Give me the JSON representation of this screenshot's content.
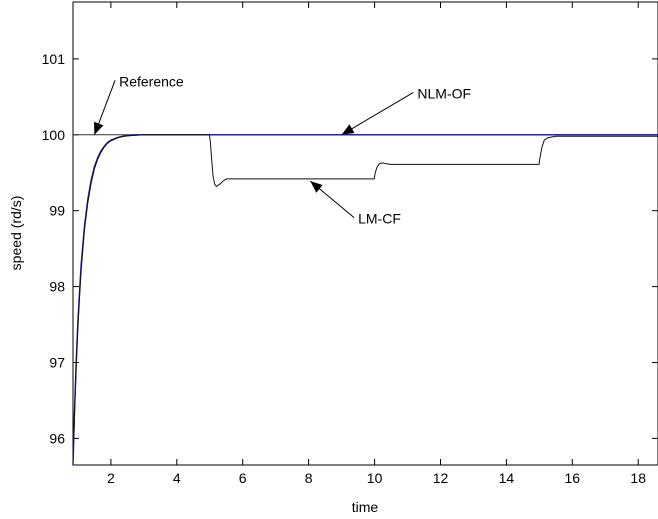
{
  "chart_data": {
    "type": "line",
    "title": "",
    "xlabel": "time",
    "ylabel": "speed (rd/s)",
    "xlim": [
      0.85,
      18.6
    ],
    "ylim": [
      95.65,
      101.75
    ],
    "xticks": [
      2,
      4,
      6,
      8,
      10,
      12,
      14,
      16,
      18
    ],
    "yticks": [
      96,
      97,
      98,
      99,
      100,
      101
    ],
    "grid": false,
    "legend": "none",
    "series": [
      {
        "name": "Reference",
        "color": "#333333",
        "x": [
          0.85,
          18.6
        ],
        "y": [
          100.0,
          100.0
        ]
      },
      {
        "name": "NLM-OF",
        "color": "#1a1aa8",
        "x": [
          0.85,
          0.9,
          0.95,
          1.0,
          1.05,
          1.1,
          1.2,
          1.3,
          1.4,
          1.5,
          1.6,
          1.7,
          1.8,
          1.9,
          2.0,
          2.2,
          2.4,
          2.6,
          2.8,
          3.0,
          3.5,
          4.0,
          6.0,
          8.0,
          10.0,
          12.0,
          14.0,
          16.0,
          18.6
        ],
        "y": [
          95.65,
          96.4,
          97.05,
          97.55,
          97.95,
          98.3,
          98.8,
          99.15,
          99.4,
          99.58,
          99.7,
          99.79,
          99.85,
          99.9,
          99.93,
          99.965,
          99.985,
          99.995,
          100.0,
          100.0,
          100.0,
          100.0,
          100.0,
          100.0,
          100.0,
          100.0,
          100.0,
          100.0,
          100.0
        ]
      },
      {
        "name": "LM-CF",
        "color": "#111111",
        "x": [
          0.85,
          0.9,
          0.95,
          1.0,
          1.05,
          1.1,
          1.2,
          1.3,
          1.4,
          1.5,
          1.6,
          1.7,
          1.8,
          1.9,
          2.0,
          2.2,
          2.4,
          2.6,
          2.8,
          3.0,
          3.5,
          4.0,
          4.5,
          4.99,
          5.02,
          5.06,
          5.1,
          5.15,
          5.2,
          5.3,
          5.4,
          5.5,
          6.0,
          7.0,
          8.0,
          9.0,
          9.99,
          10.02,
          10.08,
          10.15,
          10.25,
          10.35,
          10.5,
          11.0,
          12.0,
          13.0,
          14.0,
          14.99,
          15.02,
          15.08,
          15.15,
          15.25,
          15.35,
          15.5,
          16.0,
          17.0,
          18.0,
          18.6
        ],
        "y": [
          95.7,
          96.35,
          96.95,
          97.45,
          97.87,
          98.22,
          98.75,
          99.1,
          99.36,
          99.55,
          99.68,
          99.77,
          99.84,
          99.89,
          99.92,
          99.96,
          99.98,
          99.99,
          99.995,
          100.0,
          100.0,
          100.0,
          100.0,
          100.0,
          99.9,
          99.65,
          99.45,
          99.35,
          99.32,
          99.35,
          99.39,
          99.42,
          99.42,
          99.42,
          99.42,
          99.42,
          99.42,
          99.5,
          99.58,
          99.62,
          99.63,
          99.62,
          99.61,
          99.61,
          99.61,
          99.61,
          99.61,
          99.61,
          99.7,
          99.84,
          99.93,
          99.96,
          99.97,
          99.98,
          99.98,
          99.98,
          99.98,
          99.98
        ]
      }
    ],
    "annotations": [
      {
        "text": "Reference",
        "x": 2.25,
        "y": 100.64,
        "arrow_to": [
          1.5,
          100.0
        ]
      },
      {
        "text": "NLM-OF",
        "x": 11.3,
        "y": 100.48,
        "arrow_to": [
          9.0,
          100.0
        ]
      },
      {
        "text": "LM-CF",
        "x": 9.5,
        "y": 98.83,
        "arrow_to": [
          8.05,
          99.39
        ]
      }
    ]
  }
}
